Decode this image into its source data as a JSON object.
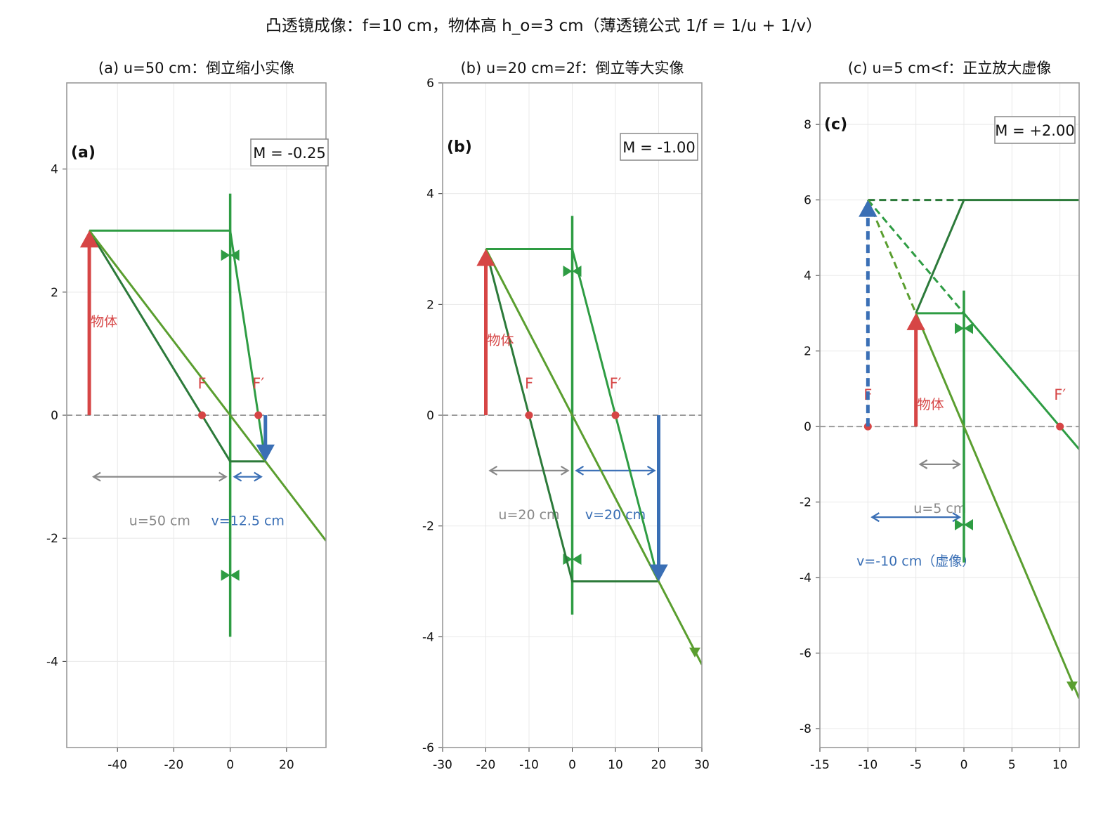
{
  "figure": {
    "suptitle": "凸透镜成像：f=10 cm，物体高 h_o=3 cm（薄透镜公式 1/f = 1/u + 1/v）"
  },
  "colors": {
    "object": "#d64545",
    "image": "#3a6fb5",
    "lens": "#2e9c43",
    "ray_parallel": "#2e9c43",
    "ray_focal": "#2c7a3a",
    "ray_center": "#5a9e2f",
    "axis_dash": "#999999",
    "distance_u": "#888888",
    "grid": "#e8e8e8",
    "frame": "#999999"
  },
  "chart_data": [
    {
      "type": "line",
      "panel_label": "(a)",
      "title": "(a) u=50 cm：倒立缩小实像",
      "xlim": [
        -58,
        34
      ],
      "ylim": [
        -5.4,
        5.4
      ],
      "xticks": [
        -40,
        -20,
        0,
        20
      ],
      "yticks": [
        -4,
        -2,
        0,
        2,
        4
      ],
      "grid": true,
      "focal_length": 10,
      "object": {
        "x": -50,
        "height": 3,
        "label": "物体"
      },
      "image": {
        "x": 12.5,
        "height": -0.75,
        "virtual": false
      },
      "lens": {
        "x": 0,
        "half_height": 3.6
      },
      "focal_points": [
        {
          "x": -10,
          "label": "F"
        },
        {
          "x": 10,
          "label": "F′"
        }
      ],
      "magnification_label": "M = -0.25",
      "distances": [
        {
          "from": -50,
          "to": 0,
          "y": -1.0,
          "label": "u=50 cm",
          "kind": "u"
        },
        {
          "from": 0,
          "to": 12.5,
          "y": -1.0,
          "label": "v=12.5 cm",
          "kind": "v"
        }
      ],
      "rays": [
        {
          "kind": "parallel",
          "points": [
            [
              -50,
              3
            ],
            [
              0,
              3
            ],
            [
              12.5,
              -0.75
            ]
          ]
        },
        {
          "kind": "focal",
          "points": [
            [
              -50,
              3
            ],
            [
              0,
              -0.75
            ],
            [
              12.5,
              -0.75
            ]
          ]
        },
        {
          "kind": "center",
          "points": [
            [
              -50,
              3
            ],
            [
              34,
              -2.04
            ]
          ]
        }
      ]
    },
    {
      "type": "line",
      "panel_label": "(b)",
      "title": "(b) u=20 cm=2f：倒立等大实像",
      "xlim": [
        -30,
        30
      ],
      "ylim": [
        -6,
        6
      ],
      "xticks": [
        -30,
        -20,
        -10,
        0,
        10,
        20,
        30
      ],
      "yticks": [
        -6,
        -4,
        -2,
        0,
        2,
        4,
        6
      ],
      "grid": true,
      "focal_length": 10,
      "object": {
        "x": -20,
        "height": 3,
        "label": "物体"
      },
      "image": {
        "x": 20,
        "height": -3,
        "virtual": false
      },
      "lens": {
        "x": 0,
        "half_height": 3.6
      },
      "focal_points": [
        {
          "x": -10,
          "label": "F"
        },
        {
          "x": 10,
          "label": "F′"
        }
      ],
      "magnification_label": "M = -1.00",
      "distances": [
        {
          "from": -20,
          "to": 0,
          "y": -1.0,
          "label": "u=20 cm",
          "kind": "u"
        },
        {
          "from": 0,
          "to": 20,
          "y": -1.0,
          "label": "v=20 cm",
          "kind": "v"
        }
      ],
      "rays": [
        {
          "kind": "parallel",
          "points": [
            [
              -20,
              3
            ],
            [
              0,
              3
            ],
            [
              20,
              -3
            ]
          ]
        },
        {
          "kind": "focal",
          "points": [
            [
              -20,
              3
            ],
            [
              0,
              -3
            ],
            [
              20,
              -3
            ]
          ]
        },
        {
          "kind": "center",
          "points": [
            [
              -20,
              3
            ],
            [
              30,
              -4.5
            ]
          ]
        }
      ]
    },
    {
      "type": "line",
      "panel_label": "(c)",
      "title": "(c) u=5 cm<f：正立放大虚像",
      "xlim": [
        -15,
        12
      ],
      "ylim": [
        -8.5,
        9.1
      ],
      "xticks": [
        -15,
        -10,
        -5,
        0,
        5,
        10
      ],
      "yticks": [
        -8,
        -6,
        -4,
        -2,
        0,
        2,
        4,
        6,
        8
      ],
      "grid": true,
      "focal_length": 10,
      "object": {
        "x": -5,
        "height": 3,
        "label": "物体"
      },
      "image": {
        "x": -10,
        "height": 6,
        "virtual": true
      },
      "lens": {
        "x": 0,
        "half_height": 3.6
      },
      "focal_points": [
        {
          "x": -10,
          "label": "F"
        },
        {
          "x": 10,
          "label": "F′"
        }
      ],
      "magnification_label": "M = +2.00",
      "distances": [
        {
          "from": -5,
          "to": 0,
          "y": -1.0,
          "label": "u=5 cm",
          "kind": "u"
        },
        {
          "from": -10,
          "to": 0,
          "y": -2.4,
          "label": "v=-10 cm（虚像）",
          "kind": "v"
        }
      ],
      "rays": [
        {
          "kind": "parallel",
          "points": [
            [
              -5,
              3
            ],
            [
              0,
              3
            ],
            [
              12,
              -0.6
            ]
          ]
        },
        {
          "kind": "focal",
          "points": [
            [
              -5,
              3
            ],
            [
              0,
              6
            ],
            [
              12,
              6
            ]
          ]
        },
        {
          "kind": "center",
          "points": [
            [
              -5,
              3
            ],
            [
              12,
              -7.2
            ]
          ]
        }
      ],
      "virtual_rays": [
        {
          "kind": "focal",
          "points": [
            [
              -10,
              6
            ],
            [
              0,
              6
            ]
          ]
        },
        {
          "kind": "parallel",
          "points": [
            [
              -10,
              6
            ],
            [
              0,
              3
            ]
          ]
        },
        {
          "kind": "center",
          "points": [
            [
              -10,
              6
            ],
            [
              -5,
              3
            ]
          ]
        }
      ]
    }
  ]
}
